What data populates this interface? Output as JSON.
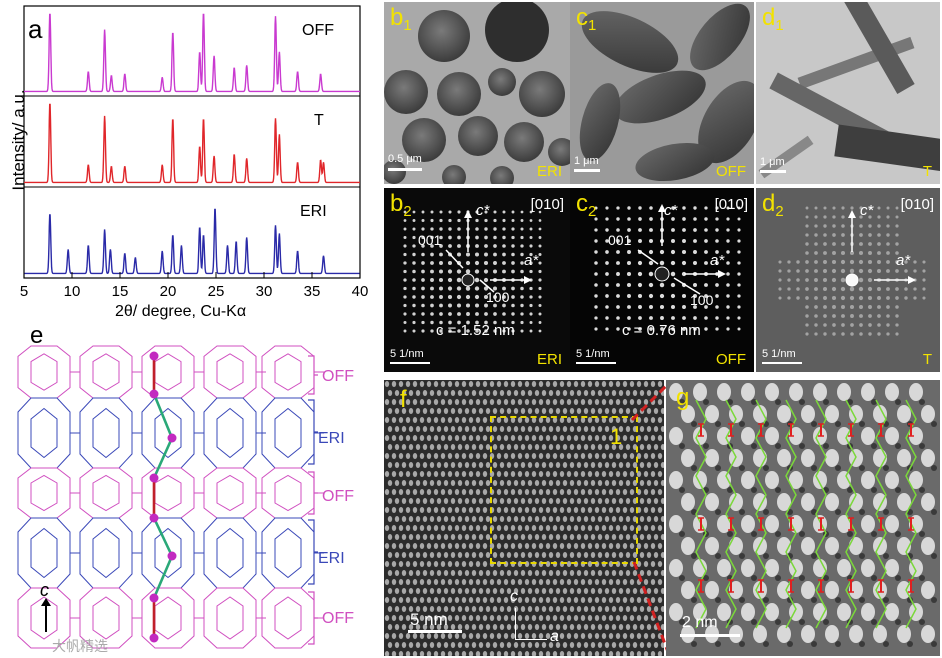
{
  "panel_a": {
    "label": "a",
    "ylabel": "Intensity/ a.u.",
    "xlabel": "2θ/ degree, Cu-Kα",
    "ticks": [
      "5",
      "10",
      "15",
      "20",
      "25",
      "30",
      "35",
      "40"
    ],
    "traces": [
      {
        "name": "OFF",
        "color": "#c93ad0"
      },
      {
        "name": "T",
        "color": "#e0262a"
      },
      {
        "name": "ERI",
        "color": "#2a2aa8"
      }
    ]
  },
  "chart_data": {
    "type": "line",
    "xlabel": "2θ/ degree, Cu-Kα",
    "ylabel": "Intensity/ a.u.",
    "xlim": [
      5,
      40
    ],
    "series": [
      {
        "name": "OFF",
        "peaks": [
          [
            7.7,
            1.0
          ],
          [
            11.7,
            0.25
          ],
          [
            13.4,
            0.78
          ],
          [
            14.1,
            0.2
          ],
          [
            15.5,
            0.22
          ],
          [
            19.4,
            0.18
          ],
          [
            20.5,
            0.75
          ],
          [
            23.3,
            0.5
          ],
          [
            23.7,
            1.0
          ],
          [
            24.8,
            0.45
          ],
          [
            26.9,
            0.3
          ],
          [
            28.2,
            0.33
          ],
          [
            31.2,
            0.95
          ],
          [
            31.6,
            0.5
          ],
          [
            33.5,
            0.25
          ],
          [
            35.9,
            0.22
          ]
        ]
      },
      {
        "name": "T",
        "peaks": [
          [
            7.7,
            1.0
          ],
          [
            11.7,
            0.22
          ],
          [
            13.4,
            0.83
          ],
          [
            14.1,
            0.2
          ],
          [
            15.5,
            0.2
          ],
          [
            19.4,
            0.22
          ],
          [
            20.5,
            0.8
          ],
          [
            23.3,
            0.45
          ],
          [
            23.7,
            0.8
          ],
          [
            24.8,
            0.33
          ],
          [
            26.9,
            0.35
          ],
          [
            28.2,
            0.3
          ],
          [
            31.2,
            0.8
          ],
          [
            31.6,
            0.6
          ],
          [
            33.5,
            0.25
          ],
          [
            35.9,
            0.28
          ],
          [
            36.2,
            0.25
          ]
        ]
      },
      {
        "name": "ERI",
        "peaks": [
          [
            7.7,
            0.75
          ],
          [
            9.6,
            0.3
          ],
          [
            11.7,
            0.35
          ],
          [
            13.4,
            0.55
          ],
          [
            14.0,
            0.3
          ],
          [
            15.5,
            0.25
          ],
          [
            16.6,
            0.2
          ],
          [
            19.4,
            0.28
          ],
          [
            20.5,
            0.48
          ],
          [
            21.4,
            0.35
          ],
          [
            23.3,
            0.58
          ],
          [
            23.7,
            0.48
          ],
          [
            24.9,
            0.82
          ],
          [
            26.2,
            0.35
          ],
          [
            27.1,
            0.4
          ],
          [
            28.2,
            0.45
          ],
          [
            31.2,
            0.6
          ],
          [
            31.6,
            0.5
          ],
          [
            33.5,
            0.28
          ],
          [
            36.2,
            0.22
          ]
        ]
      }
    ]
  },
  "panel_b1": {
    "label": "b",
    "sub": "1",
    "scale": "0.5 μm",
    "sample": "ERI"
  },
  "panel_c1": {
    "label": "c",
    "sub": "1",
    "scale": "1 μm",
    "sample": "OFF"
  },
  "panel_d1": {
    "label": "d",
    "sub": "1",
    "scale": "1 μm",
    "sample": "T"
  },
  "panel_b2": {
    "label": "b",
    "sub": "2",
    "zone": "[010]",
    "c_axis": "c*",
    "a_axis": "a*",
    "refl_001": "001",
    "refl_100": "100",
    "spacing": "c = 1.52 nm",
    "scale": "5 1/nm",
    "sample": "ERI"
  },
  "panel_c2": {
    "label": "c",
    "sub": "2",
    "zone": "[010]",
    "c_axis": "c*",
    "a_axis": "a*",
    "refl_001": "001",
    "refl_100": "100",
    "spacing": "c = 0.76 nm",
    "scale": "5 1/nm",
    "sample": "OFF"
  },
  "panel_d2": {
    "label": "d",
    "sub": "2",
    "zone": "[010]",
    "c_axis": "c*",
    "a_axis": "a*",
    "scale": "5 1/nm",
    "sample": "T"
  },
  "panel_e": {
    "label": "e",
    "axis": "c",
    "stack": [
      "OFF",
      "ERI",
      "OFF",
      "ERI",
      "OFF"
    ],
    "off_color": "#d04fc0",
    "eri_color": "#3a48b8"
  },
  "panel_f": {
    "label": "f",
    "box_label": "1",
    "scale": "5 nm",
    "axis_c": "c",
    "axis_a": "a"
  },
  "panel_g": {
    "label": "g",
    "scale": "2 nm"
  },
  "watermark": "大帆精选"
}
